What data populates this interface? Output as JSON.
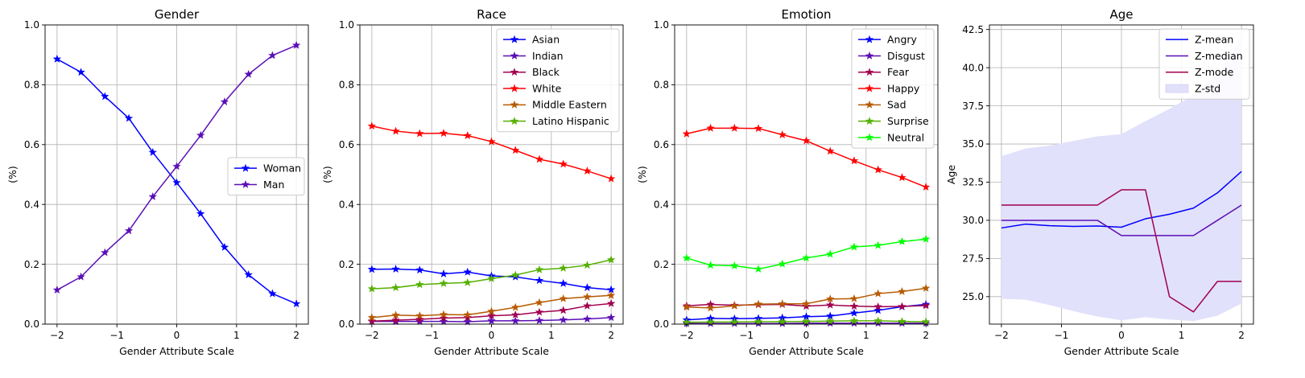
{
  "chart_data": [
    {
      "type": "line",
      "title": "Gender",
      "xlabel": "Gender Attribute Scale",
      "ylabel": "(%)",
      "xlim": [
        -2.2,
        2.2
      ],
      "ylim": [
        0,
        1.0
      ],
      "xticks": [
        -2,
        -1,
        0,
        1,
        2
      ],
      "xtick_labels": [
        "−2",
        "−1",
        "0",
        "1",
        "2"
      ],
      "yticks": [
        0,
        0.2,
        0.4,
        0.6,
        0.8,
        1.0
      ],
      "ytick_labels": [
        "0.0",
        "0.2",
        "0.4",
        "0.6",
        "0.8",
        "1.0"
      ],
      "grid": true,
      "legend_position": "center-right",
      "x": [
        -2,
        -1.6,
        -1.2,
        -0.8,
        -0.4,
        0,
        0.4,
        0.8,
        1.2,
        1.6,
        2
      ],
      "series": [
        {
          "name": "Woman",
          "color": "#0000ff",
          "values": [
            0.886,
            0.842,
            0.761,
            0.688,
            0.574,
            0.473,
            0.369,
            0.257,
            0.165,
            0.102,
            0.068
          ]
        },
        {
          "name": "Man",
          "color": "#5b0fb6",
          "values": [
            0.114,
            0.158,
            0.239,
            0.312,
            0.426,
            0.527,
            0.631,
            0.743,
            0.835,
            0.898,
            0.932
          ]
        }
      ]
    },
    {
      "type": "line",
      "title": "Race",
      "xlabel": "Gender Attribute Scale",
      "ylabel": "(%)",
      "xlim": [
        -2.2,
        2.2
      ],
      "ylim": [
        0,
        1.0
      ],
      "xticks": [
        -2,
        -1,
        0,
        1,
        2
      ],
      "xtick_labels": [
        "−2",
        "−1",
        "0",
        "1",
        "2"
      ],
      "yticks": [
        0,
        0.2,
        0.4,
        0.6,
        0.8,
        1.0
      ],
      "ytick_labels": [
        "0.0",
        "0.2",
        "0.4",
        "0.6",
        "0.8",
        "1.0"
      ],
      "grid": true,
      "legend_position": "top-right",
      "x": [
        -2,
        -1.6,
        -1.2,
        -0.8,
        -0.4,
        0,
        0.4,
        0.8,
        1.2,
        1.6,
        2
      ],
      "series": [
        {
          "name": "Asian",
          "color": "#0000ff",
          "values": [
            0.183,
            0.184,
            0.181,
            0.168,
            0.174,
            0.161,
            0.158,
            0.146,
            0.136,
            0.122,
            0.115
          ]
        },
        {
          "name": "Indian",
          "color": "#5b0fb6",
          "values": [
            0.009,
            0.009,
            0.009,
            0.009,
            0.008,
            0.011,
            0.011,
            0.012,
            0.014,
            0.017,
            0.022
          ]
        },
        {
          "name": "Black",
          "color": "#a0004f",
          "values": [
            0.01,
            0.013,
            0.016,
            0.02,
            0.022,
            0.028,
            0.031,
            0.04,
            0.046,
            0.061,
            0.069
          ]
        },
        {
          "name": "White",
          "color": "#ff0000",
          "values": [
            0.662,
            0.645,
            0.637,
            0.638,
            0.63,
            0.61,
            0.581,
            0.551,
            0.535,
            0.512,
            0.486
          ]
        },
        {
          "name": "Middle Eastern",
          "color": "#b65a00",
          "values": [
            0.022,
            0.03,
            0.028,
            0.032,
            0.031,
            0.043,
            0.056,
            0.072,
            0.085,
            0.091,
            0.096
          ]
        },
        {
          "name": "Latino Hispanic",
          "color": "#55b000",
          "values": [
            0.118,
            0.122,
            0.132,
            0.136,
            0.139,
            0.152,
            0.164,
            0.182,
            0.187,
            0.197,
            0.215
          ]
        }
      ]
    },
    {
      "type": "line",
      "title": "Emotion",
      "xlabel": "Gender Attribute Scale",
      "ylabel": "(%)",
      "xlim": [
        -2.2,
        2.2
      ],
      "ylim": [
        0,
        1.0
      ],
      "xticks": [
        -2,
        -1,
        0,
        1,
        2
      ],
      "xtick_labels": [
        "−2",
        "−1",
        "0",
        "1",
        "2"
      ],
      "yticks": [
        0,
        0.2,
        0.4,
        0.6,
        0.8,
        1.0
      ],
      "ytick_labels": [
        "0.0",
        "0.2",
        "0.4",
        "0.6",
        "0.8",
        "1.0"
      ],
      "grid": true,
      "legend_position": "top-right",
      "x": [
        -2,
        -1.6,
        -1.2,
        -0.8,
        -0.4,
        0,
        0.4,
        0.8,
        1.2,
        1.6,
        2
      ],
      "series": [
        {
          "name": "Angry",
          "color": "#0000ff",
          "values": [
            0.014,
            0.019,
            0.018,
            0.019,
            0.021,
            0.025,
            0.027,
            0.037,
            0.046,
            0.058,
            0.066
          ]
        },
        {
          "name": "Disgust",
          "color": "#5b0fb6",
          "values": [
            0.002,
            0.002,
            0.002,
            0.002,
            0.002,
            0.003,
            0.003,
            0.003,
            0.003,
            0.003,
            0.003
          ]
        },
        {
          "name": "Fear",
          "color": "#a0004f",
          "values": [
            0.061,
            0.066,
            0.063,
            0.065,
            0.066,
            0.06,
            0.064,
            0.06,
            0.058,
            0.059,
            0.062
          ]
        },
        {
          "name": "Happy",
          "color": "#ff0000",
          "values": [
            0.636,
            0.655,
            0.655,
            0.654,
            0.633,
            0.613,
            0.578,
            0.546,
            0.516,
            0.49,
            0.458
          ]
        },
        {
          "name": "Sad",
          "color": "#b65a00",
          "values": [
            0.057,
            0.054,
            0.061,
            0.067,
            0.068,
            0.068,
            0.084,
            0.085,
            0.102,
            0.109,
            0.12
          ]
        },
        {
          "name": "Surprise",
          "color": "#55b000",
          "values": [
            0.006,
            0.007,
            0.007,
            0.008,
            0.008,
            0.009,
            0.01,
            0.011,
            0.011,
            0.009,
            0.008
          ]
        },
        {
          "name": "Neutral",
          "color": "#00ff00",
          "values": [
            0.221,
            0.197,
            0.195,
            0.184,
            0.201,
            0.221,
            0.234,
            0.258,
            0.263,
            0.276,
            0.284
          ]
        }
      ]
    },
    {
      "type": "line",
      "title": "Age",
      "xlabel": "Gender Attribute Scale",
      "ylabel": "Age",
      "xlim": [
        -2.2,
        2.2
      ],
      "ylim": [
        23.2,
        42.8
      ],
      "xticks": [
        -2,
        -1,
        0,
        1,
        2
      ],
      "xtick_labels": [
        "−2",
        "−1",
        "0",
        "1",
        "2"
      ],
      "yticks": [
        25.0,
        27.5,
        30.0,
        32.5,
        35.0,
        37.5,
        40.0,
        42.5
      ],
      "ytick_labels": [
        "25.0",
        "27.5",
        "30.0",
        "32.5",
        "35.0",
        "37.5",
        "40.0",
        "42.5"
      ],
      "grid": true,
      "legend_position": "top-right",
      "x": [
        -2,
        -1.6,
        -1.2,
        -0.8,
        -0.4,
        0,
        0.4,
        0.8,
        1.2,
        1.6,
        2
      ],
      "series": [
        {
          "name": "Z-mean",
          "color": "#0000ff",
          "values": [
            29.5,
            29.75,
            29.65,
            29.6,
            29.63,
            29.55,
            30.1,
            30.4,
            30.8,
            31.8,
            33.2
          ]
        },
        {
          "name": "Z-median",
          "color": "#5b0fb6",
          "values": [
            30.0,
            30.0,
            30.0,
            30.0,
            30.0,
            29.0,
            29.0,
            29.0,
            29.0,
            30.0,
            31.0
          ]
        },
        {
          "name": "Z-mode",
          "color": "#a0004f",
          "values": [
            31.0,
            31.0,
            31.0,
            31.0,
            31.0,
            32.0,
            32.0,
            25.0,
            24.0,
            26.0,
            26.0
          ]
        }
      ],
      "band": {
        "name": "Z-std",
        "color": "#e1e1fb",
        "upper": [
          34.2,
          34.7,
          34.9,
          35.2,
          35.5,
          35.65,
          36.5,
          37.3,
          38.2,
          39.6,
          42.0
        ],
        "lower": [
          24.85,
          24.8,
          24.45,
          24.05,
          23.7,
          23.45,
          23.65,
          23.5,
          23.4,
          23.75,
          24.55
        ]
      }
    }
  ]
}
